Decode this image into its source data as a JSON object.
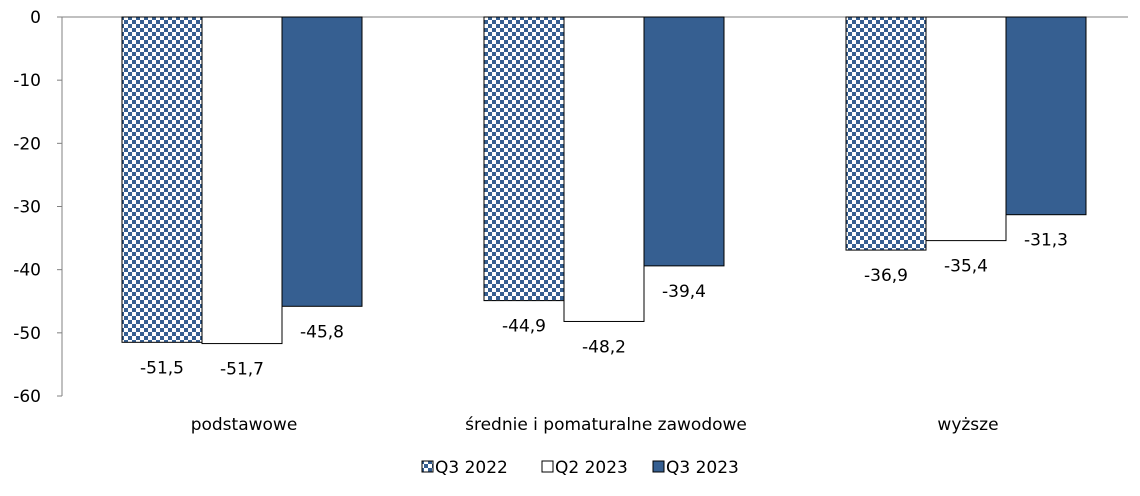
{
  "chart_data": {
    "type": "bar",
    "categories": [
      "podstawowe",
      "średnie i pomaturalne zawodowe",
      "wyższe"
    ],
    "series": [
      {
        "name": "Q3 2022",
        "values": [
          -51.5,
          -44.9,
          -36.9
        ],
        "style": "checkered",
        "color": "#365F91"
      },
      {
        "name": "Q2 2023",
        "values": [
          -51.7,
          -48.2,
          -35.4
        ],
        "style": "hollow",
        "color": "#FFFFFF"
      },
      {
        "name": "Q3 2023",
        "values": [
          -45.8,
          -39.4,
          -31.3
        ],
        "style": "solid",
        "color": "#365F91"
      }
    ],
    "data_labels": [
      [
        "-51,5",
        "-44,9",
        "-36,9"
      ],
      [
        "-51,7",
        "-48,2",
        "-35,4"
      ],
      [
        "-45,8",
        "-39,4",
        "-31,3"
      ]
    ],
    "y_ticks": [
      0,
      -10,
      -20,
      -30,
      -40,
      -50,
      -60
    ],
    "y_tick_labels": [
      "0",
      "-10",
      "-20",
      "-30",
      "-40",
      "-50",
      "-60"
    ],
    "ylim": [
      -60,
      0
    ],
    "grid": false,
    "legend_position": "bottom",
    "title": "",
    "xlabel": "",
    "ylabel": ""
  }
}
